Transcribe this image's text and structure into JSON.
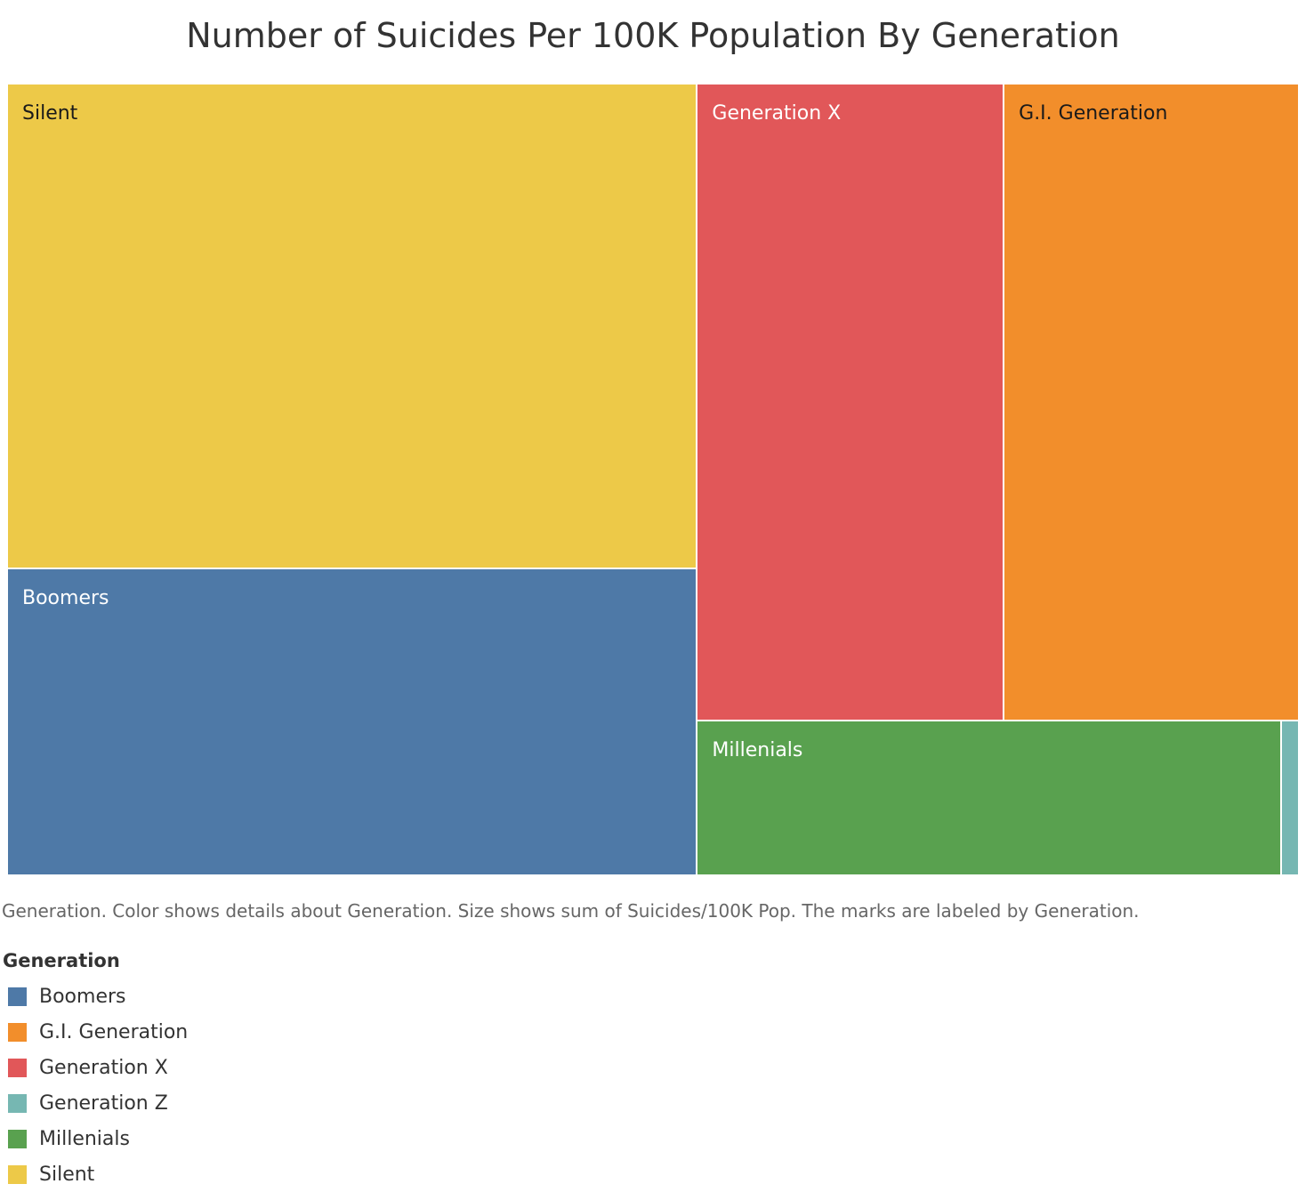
{
  "chart_data": {
    "type": "treemap",
    "title": "Number of Suicides Per 100K Population By Generation",
    "caption": "Generation.  Color shows details about Generation.  Size shows sum of Suicides/100K Pop.  The marks are labeled by Generation.",
    "legend": {
      "title": "Generation",
      "items": [
        {
          "label": "Boomers",
          "color": "#4e79a7"
        },
        {
          "label": "G.I. Generation",
          "color": "#f28e2b"
        },
        {
          "label": "Generation X",
          "color": "#e15759"
        },
        {
          "label": "Generation Z",
          "color": "#76b7b2"
        },
        {
          "label": "Millenials",
          "color": "#59a14f"
        },
        {
          "label": "Silent",
          "color": "#edc948"
        }
      ]
    },
    "series": [
      {
        "name": "Silent",
        "value": 59.6,
        "color": "#edc948",
        "label_color": "#1a1a1a"
      },
      {
        "name": "Boomers",
        "value": 37.7,
        "color": "#4e79a7",
        "label_color": "#ffffff"
      },
      {
        "name": "Generation X",
        "value": 34.8,
        "color": "#e15759",
        "label_color": "#ffffff"
      },
      {
        "name": "G.I. Generation",
        "value": 33.5,
        "color": "#f28e2b",
        "label_color": "#1a1a1a"
      },
      {
        "name": "Millenials",
        "value": 16.1,
        "color": "#59a14f",
        "label_color": "#ffffff"
      },
      {
        "name": "Generation Z",
        "value": 0.5,
        "color": "#76b7b2",
        "label_color": "#ffffff"
      }
    ]
  }
}
